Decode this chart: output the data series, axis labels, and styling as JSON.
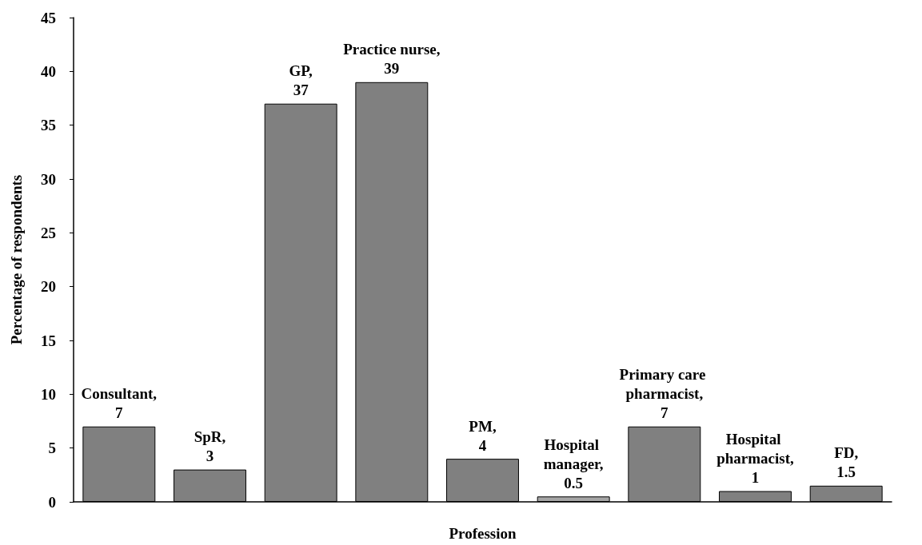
{
  "chart_data": {
    "type": "bar",
    "xlabel": "Profession",
    "ylabel": "Percentage of respondents",
    "categories": [
      null,
      null,
      null,
      null,
      null,
      null,
      null,
      null,
      null
    ],
    "values": [
      7,
      3,
      37,
      39,
      4,
      0.5,
      7,
      1,
      1.5
    ],
    "value_labels": [
      "Consultant, 7",
      "SpR, 3",
      "GP, 37",
      "Practice nurse, 39",
      "PM, 4",
      "Hospital manager, 0.5",
      "Primary care pharmacist, 7",
      "Hospital pharmacist, 1",
      "FD, 1.5"
    ],
    "colors": [
      "#808080",
      "#808080",
      "#808080",
      "#808080",
      "#808080",
      "#a6a6a6",
      "#808080",
      "#808080",
      "#808080"
    ],
    "ylim": [
      0,
      45
    ],
    "yticks": [
      0,
      5,
      10,
      15,
      20,
      25,
      30,
      35,
      40,
      45
    ],
    "grid": false,
    "tick_labels": "y"
  }
}
